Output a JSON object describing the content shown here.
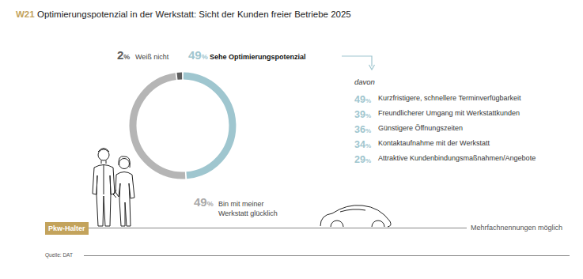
{
  "chart_data": {
    "type": "donut",
    "label": "W21",
    "title": "Optimierungspotenzial in der Werkstatt: Sicht der Kunden freier Betriebe 2025",
    "categories": [
      "Sehe Optimierungspotenzial",
      "Bin mit meiner Werkstatt glücklich",
      "Weiß nicht"
    ],
    "values": [
      49,
      49,
      2
    ],
    "value_labels": [
      "49%",
      "49%",
      "2%"
    ],
    "colors": [
      "#9fc6cf",
      "#b5b5b5",
      "#5e5e5e"
    ],
    "data_labels": true,
    "breakdown": {
      "subtitle": "davon",
      "categories": [
        "Kurzfristigere, schnellere Terminverfügbarkeit",
        "Freundlicherer Umgang mit Werkstattkunden",
        "Günstigere Öffnungszeiten",
        "Kontaktaufnahme mit der Werkstatt",
        "Attraktive Kundenbindungsmaßnahmen/Angebote"
      ],
      "values": [
        49,
        39,
        36,
        34,
        29
      ],
      "value_labels": [
        "49%",
        "39%",
        "36%",
        "34%",
        "29%"
      ],
      "color": "#9fc6cf"
    },
    "group_label": "Pkw-Halter",
    "note": "Mehrfachnennungen möglich",
    "source": "Quelle: DAT"
  }
}
